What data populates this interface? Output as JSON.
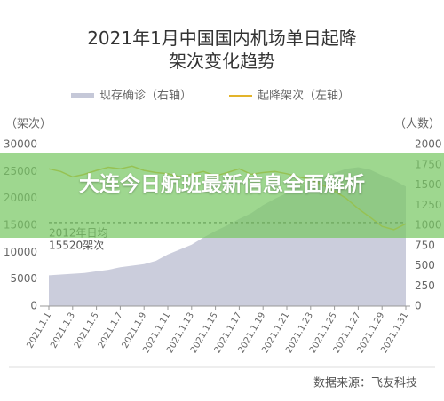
{
  "chart_data": {
    "type": "area_line",
    "title": "2021年1月中国国内机场单日起降架次变化趋势",
    "y_label": "（架次）",
    "y2_label": "（人数）",
    "categories": [
      "2021.1.1",
      null,
      "2021.1.3",
      null,
      "2021.1.5",
      null,
      "2021.1.7",
      null,
      "2021.1.9",
      null,
      "2021.1.11",
      null,
      "2021.1.13",
      null,
      "2021.1.15",
      null,
      "2021.1.17",
      null,
      "2021.1.19",
      null,
      "2021.1.21",
      null,
      "2021.1.23",
      null,
      "2021.1.25",
      null,
      "2021.1.27",
      null,
      "2021.1.29",
      null,
      "2021.1.31"
    ],
    "series": [
      {
        "name": "现存确诊（右轴）",
        "color": "#c5c8d8",
        "axis": "y2",
        "kind": "area",
        "values": [
          380,
          390,
          400,
          410,
          430,
          450,
          480,
          500,
          520,
          560,
          640,
          700,
          760,
          850,
          930,
          1000,
          1080,
          1150,
          1250,
          1330,
          1400,
          1470,
          1540,
          1600,
          1650,
          1700,
          1720,
          1690,
          1620,
          1560,
          1480
        ]
      },
      {
        "name": "起降架次（左轴）",
        "color": "#e3b42a",
        "axis": "y",
        "kind": "line",
        "values": [
          25500,
          25000,
          24000,
          24500,
          25200,
          25800,
          25500,
          26000,
          25200,
          24800,
          24600,
          24000,
          24500,
          25000,
          24200,
          24800,
          25500,
          24500,
          24800,
          25000,
          24600,
          24000,
          23500,
          22500,
          21400,
          20000,
          18100,
          16500,
          14800,
          14200,
          15300
        ]
      }
    ],
    "ylim": [
      0,
      30000
    ],
    "yticks": [
      0,
      5000,
      10000,
      15000,
      20000,
      25000,
      30000
    ],
    "y2lim": [
      0,
      2000
    ],
    "y2ticks": [
      0,
      250,
      500,
      750,
      1000,
      1250,
      1500,
      1750,
      2000
    ],
    "reference_line": 15520,
    "annotation": [
      "2012年日均",
      "15520架次"
    ],
    "source": "数据来源：飞友科技",
    "grid": false
  },
  "banner": {
    "text": "大连今日航班最新信息全面解析"
  }
}
